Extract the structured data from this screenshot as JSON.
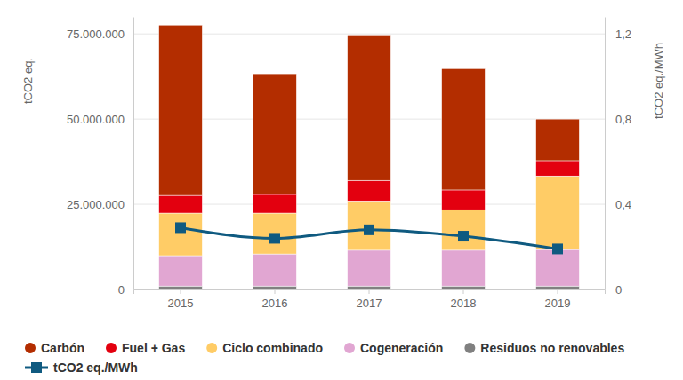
{
  "chart_data": {
    "type": "bar",
    "stacked": true,
    "grid": true,
    "legend": "bottom-left",
    "y_label": "tCO2 eq.",
    "y2_label": "tCO2 eq./MWh",
    "categories": [
      "2015",
      "2016",
      "2017",
      "2018",
      "2019"
    ],
    "ylim": [
      0,
      80000000
    ],
    "yticks": [
      0,
      {
        "value": 25000000,
        "label": "25.000.000"
      },
      {
        "value": 50000000,
        "label": "50.000.000"
      },
      {
        "value": 75000000,
        "label": "75.000.000"
      }
    ],
    "y2lim": [
      0,
      1.28
    ],
    "y2ticks": [
      0,
      {
        "value": 0.4,
        "label": "0,4"
      },
      {
        "value": 0.8,
        "label": "0,8"
      },
      {
        "value": 1.2,
        "label": "1,2"
      }
    ],
    "series": [
      {
        "name": "Carbón",
        "color": "#b32d00",
        "values": [
          50000000,
          35400000,
          42700000,
          35600000,
          12200000
        ]
      },
      {
        "name": "Fuel + Gas",
        "color": "#e3000f",
        "values": [
          5200000,
          5500000,
          6000000,
          5800000,
          4500000
        ]
      },
      {
        "name": "Ciclo combinado",
        "color": "#ffcc66",
        "values": [
          12500000,
          12000000,
          14500000,
          11900000,
          21600000
        ]
      },
      {
        "name": "Cogeneración",
        "color": "#e1a6d2",
        "values": [
          8900000,
          9400000,
          10500000,
          10500000,
          10700000
        ]
      },
      {
        "name": "Residuos no renovables",
        "color": "#808080",
        "values": [
          1000000,
          1000000,
          1000000,
          1000000,
          1000000
        ]
      },
      {
        "name": "tCO2 eq./MWh",
        "color": "#0f5a80",
        "type": "line",
        "axis": "y2",
        "marker": "square",
        "line_style": "smooth",
        "values": [
          0.29,
          0.24,
          0.28,
          0.25,
          0.19
        ]
      }
    ]
  }
}
